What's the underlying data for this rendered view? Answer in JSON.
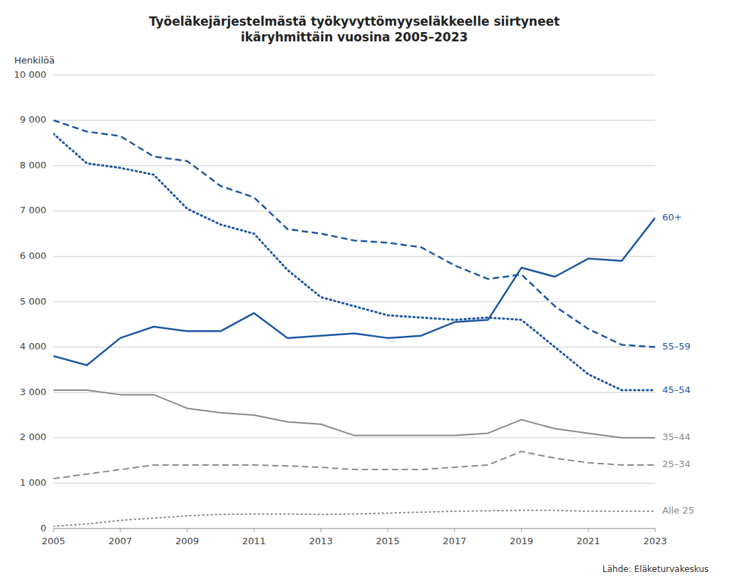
{
  "chart_data": {
    "type": "line",
    "title": "Työeläkejärjestelmästä työkyvyttömyyseläkkeelle siirtyneet\nikäryhmittäin vuosina 2005–2023",
    "y_label": "Henkilöä",
    "source": "Lähde: Eläketurvakeskus",
    "x": [
      2005,
      2006,
      2007,
      2008,
      2009,
      2010,
      2011,
      2012,
      2013,
      2014,
      2015,
      2016,
      2017,
      2018,
      2019,
      2020,
      2021,
      2022,
      2023
    ],
    "series": [
      {
        "name": "60+",
        "color": "#1a56a0",
        "line_style": "solid",
        "values": [
          3800,
          3600,
          4200,
          4450,
          4350,
          4350,
          4750,
          4200,
          4250,
          4300,
          4200,
          4250,
          4550,
          4600,
          5750,
          5550,
          5950,
          5900,
          6850
        ]
      },
      {
        "name": "55–59",
        "color": "#1a56a0",
        "line_style": "dashed",
        "values": [
          9000,
          8750,
          8650,
          8200,
          8100,
          7550,
          7300,
          6600,
          6500,
          6350,
          6300,
          6200,
          5800,
          5500,
          5600,
          4900,
          4400,
          4050,
          4000
        ]
      },
      {
        "name": "45–54",
        "color": "#1a56a0",
        "line_style": "dotted",
        "values": [
          8700,
          8050,
          7950,
          7800,
          7050,
          6700,
          6500,
          5700,
          5100,
          4900,
          4700,
          4650,
          4600,
          4650,
          4600,
          4000,
          3400,
          3050,
          3050
        ]
      },
      {
        "name": "35–44",
        "color": "#888888",
        "line_style": "solid",
        "values": [
          3050,
          3050,
          2950,
          2950,
          2650,
          2550,
          2500,
          2350,
          2300,
          2050,
          2050,
          2050,
          2050,
          2100,
          2400,
          2200,
          2100,
          2000,
          2000
        ]
      },
      {
        "name": "25–34",
        "color": "#888888",
        "line_style": "dashed",
        "values": [
          1100,
          1200,
          1300,
          1400,
          1400,
          1400,
          1400,
          1380,
          1350,
          1300,
          1300,
          1300,
          1350,
          1400,
          1700,
          1550,
          1450,
          1400,
          1400
        ]
      },
      {
        "name": "Alle 25",
        "color": "#888888",
        "line_style": "dotted",
        "values": [
          50,
          100,
          180,
          230,
          280,
          310,
          320,
          320,
          310,
          320,
          340,
          360,
          380,
          390,
          400,
          400,
          380,
          380,
          380
        ]
      }
    ],
    "xlim": [
      2005,
      2023
    ],
    "xticks": [
      2005,
      2007,
      2009,
      2011,
      2013,
      2015,
      2017,
      2019,
      2021,
      2023
    ],
    "ylim": [
      0,
      10000
    ],
    "yticks": [
      0,
      {
        "value": 1000,
        "label": "1 000"
      },
      {
        "value": 2000,
        "label": "2 000"
      },
      {
        "value": 3000,
        "label": "3 000"
      },
      {
        "value": 4000,
        "label": "4 000"
      },
      {
        "value": 5000,
        "label": "5 000"
      },
      {
        "value": 6000,
        "label": "6 000"
      },
      {
        "value": 7000,
        "label": "7 000"
      },
      {
        "value": 8000,
        "label": "8 000"
      },
      {
        "value": 9000,
        "label": "9 000"
      },
      {
        "value": 10000,
        "label": "10 000"
      }
    ],
    "grid": true
  }
}
